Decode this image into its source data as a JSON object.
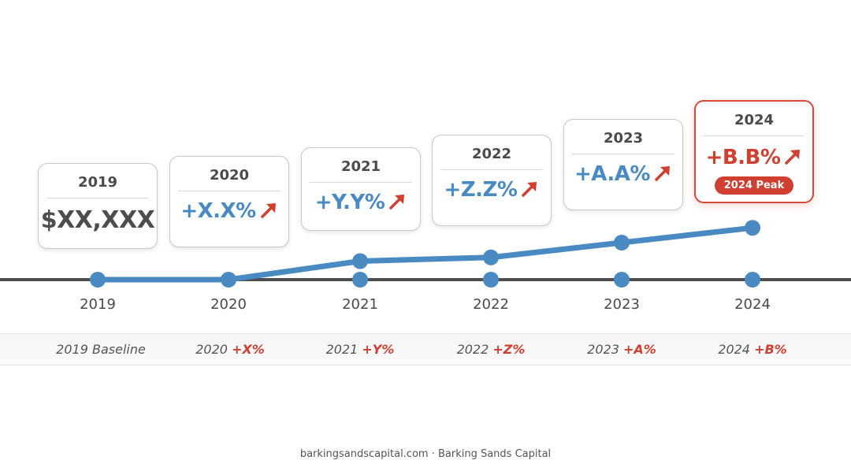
{
  "chart_data": {
    "type": "line",
    "x": [
      "2019",
      "2020",
      "2021",
      "2022",
      "2023",
      "2024"
    ],
    "series": [
      {
        "values": [
          0,
          0,
          1,
          1.2,
          2.0,
          2.8
        ]
      }
    ],
    "xlabel": "",
    "ylabel": "",
    "grid": false
  },
  "cards": [
    {
      "year": "2019",
      "value": "$XX,XXX",
      "kind": "baseline"
    },
    {
      "year": "2020",
      "value": "+X.X%",
      "kind": "growth"
    },
    {
      "year": "2021",
      "value": "+Y.Y%",
      "kind": "growth"
    },
    {
      "year": "2022",
      "value": "+Z.Z%",
      "kind": "growth"
    },
    {
      "year": "2023",
      "value": "+A.A%",
      "kind": "growth"
    },
    {
      "year": "2024",
      "value": "+B.B%",
      "kind": "peak",
      "badge": "2024 Peak"
    }
  ],
  "axis_labels": [
    "2019",
    "2020",
    "2021",
    "2022",
    "2023",
    "2024"
  ],
  "summary": [
    {
      "label": "2019 Baseline",
      "delta": ""
    },
    {
      "label": "2020",
      "delta": "+X%"
    },
    {
      "label": "2021",
      "delta": "+Y%"
    },
    {
      "label": "2022",
      "delta": "+Z%"
    },
    {
      "label": "2023",
      "delta": "+A%"
    },
    {
      "label": "2024",
      "delta": "+B%"
    }
  ],
  "footer": "barkingsandscapital.com · Barking Sands Capital",
  "colors": {
    "axis": "#4d4d4d",
    "line": "#4a8ac2",
    "point": "#4a8ac2",
    "accent": "#d13f30",
    "growth_text": "#4a8ac2"
  },
  "icons": {
    "growth": "arrow-up-right-icon"
  }
}
